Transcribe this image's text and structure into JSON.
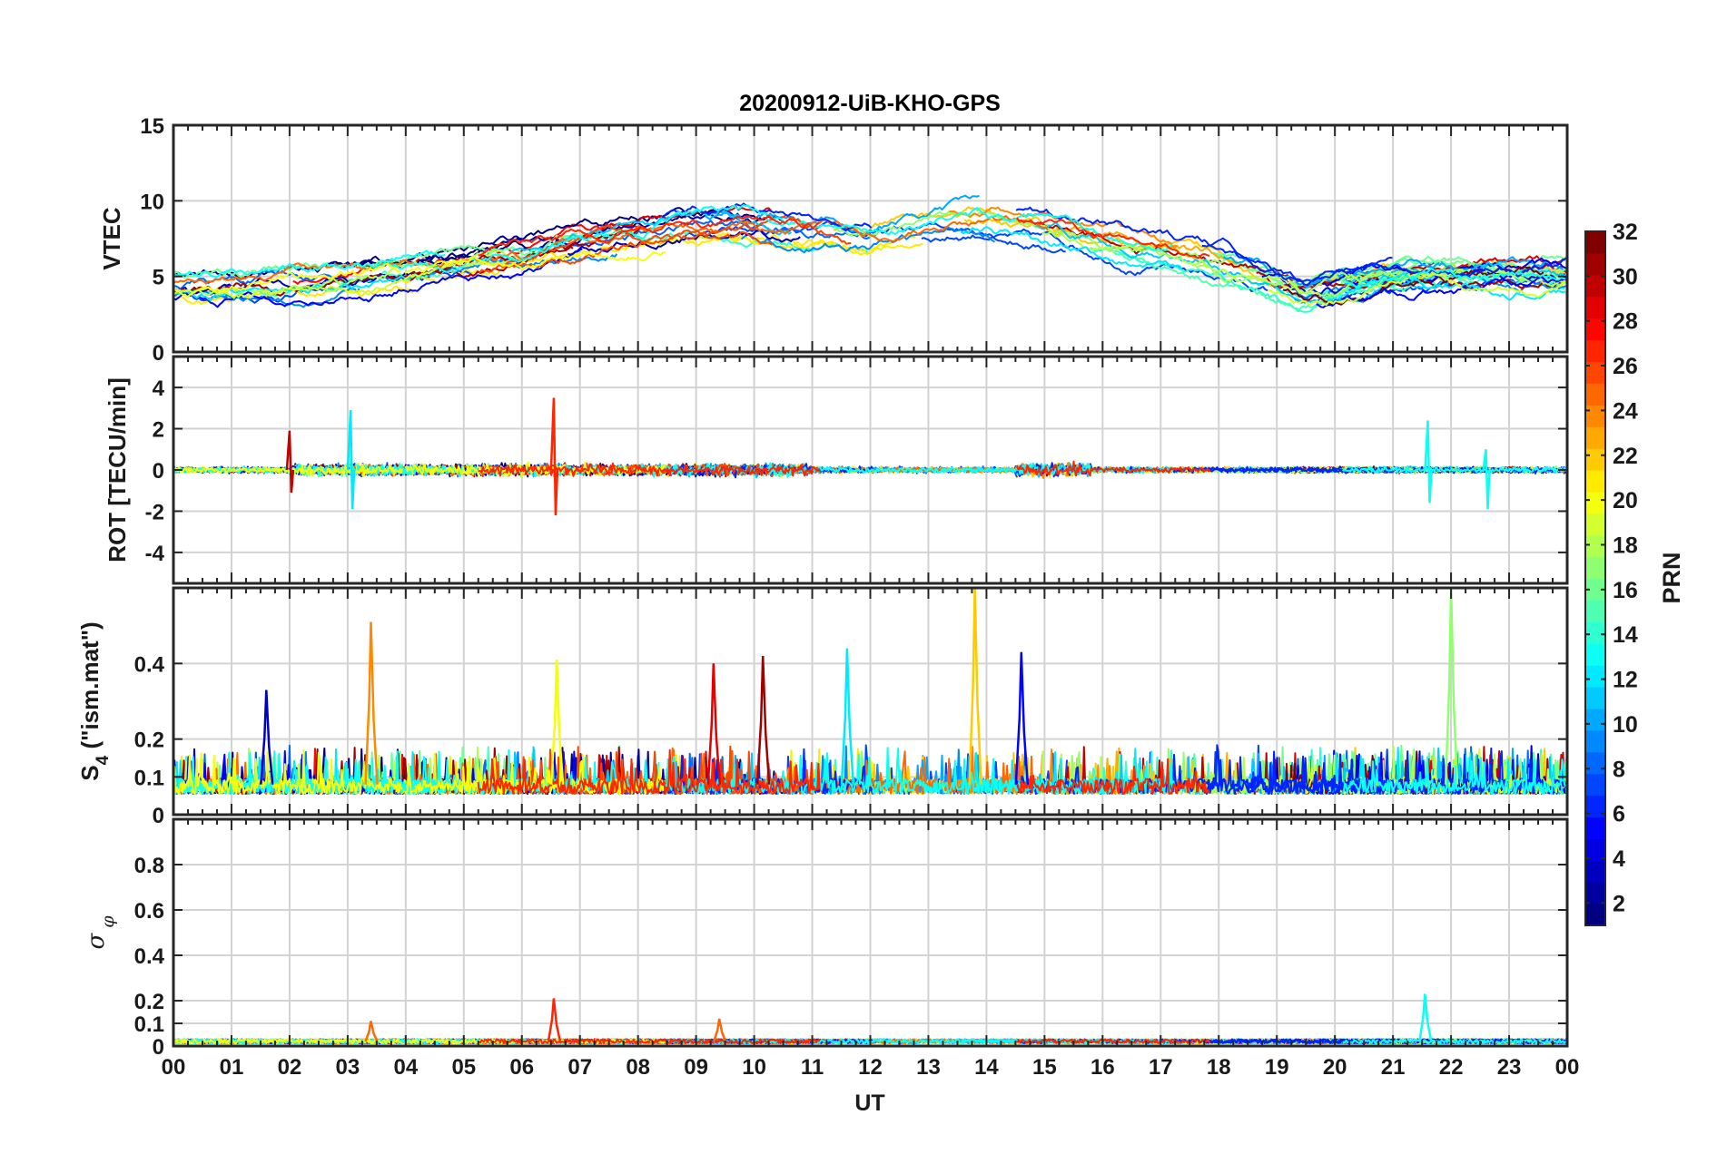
{
  "chart_data": {
    "type": "line",
    "title": "20200912-UiB-KHO-GPS",
    "xlabel": "UT",
    "xlim": [
      0,
      24
    ],
    "x_tick_labels": [
      "00",
      "01",
      "02",
      "03",
      "04",
      "05",
      "06",
      "07",
      "08",
      "09",
      "10",
      "11",
      "12",
      "13",
      "14",
      "15",
      "16",
      "17",
      "18",
      "19",
      "20",
      "21",
      "22",
      "23",
      "00"
    ],
    "series_id_note": "color = satellite PRN (1-32)",
    "colorbar": {
      "label": "PRN",
      "range": [
        1,
        32
      ],
      "tick_labels": [
        "2",
        "4",
        "6",
        "8",
        "10",
        "12",
        "14",
        "16",
        "18",
        "20",
        "22",
        "24",
        "26",
        "28",
        "30",
        "32"
      ],
      "colormap": "jet"
    },
    "panels": [
      {
        "id": "vtec",
        "ylabel": "VTEC",
        "ylim": [
          0,
          15
        ],
        "y_ticks": [
          0,
          5,
          10,
          15
        ],
        "y_tick_labels": [
          "0",
          "5",
          "10",
          "15"
        ],
        "typical_profile": {
          "hours": [
            0,
            3,
            6,
            9,
            12,
            14,
            15,
            17,
            18,
            19.5,
            21,
            24
          ],
          "values": [
            4.5,
            5,
            6.5,
            8.5,
            7.8,
            8.8,
            8,
            6.5,
            5.8,
            4,
            5,
            5.2
          ]
        }
      },
      {
        "id": "rot",
        "ylabel": "ROT [TECU/min]",
        "ylim": [
          -5.5,
          5.5
        ],
        "y_ticks": [
          -4,
          -2,
          0,
          2,
          4
        ],
        "y_tick_labels": [
          "-4",
          "-2",
          "0",
          "2",
          "4"
        ],
        "peaks": [
          {
            "ut": 6.55,
            "prn": 27,
            "max": 3.5,
            "min": -2.2
          },
          {
            "ut": 3.05,
            "prn": 12,
            "max": 2.9,
            "min": -1.9
          },
          {
            "ut": 2.0,
            "prn": 30,
            "max": 1.9,
            "min": -1.1
          },
          {
            "ut": 21.6,
            "prn": 13,
            "max": 2.4,
            "min": -1.6
          },
          {
            "ut": 22.6,
            "prn": 13,
            "max": 1.0,
            "min": -1.9
          }
        ]
      },
      {
        "id": "s4",
        "ylabel": "S4 (\"ism.mat\")",
        "ylabel_main": "S",
        "ylabel_sub": "4",
        "ylabel_rest": " (\"ism.mat\")",
        "ylim": [
          0,
          0.6
        ],
        "y_ticks": [
          0,
          0.1,
          0.2,
          0.4
        ],
        "y_tick_labels": [
          "0",
          "0.1",
          "0.2",
          "0.4"
        ],
        "peaks": [
          {
            "ut": 13.8,
            "prn": 22,
            "value": 0.6
          },
          {
            "ut": 22.0,
            "prn": 17,
            "value": 0.6
          },
          {
            "ut": 3.4,
            "prn": 24,
            "value": 0.51
          },
          {
            "ut": 10.15,
            "prn": 31,
            "value": 0.42
          },
          {
            "ut": 14.6,
            "prn": 5,
            "value": 0.43
          },
          {
            "ut": 6.6,
            "prn": 20,
            "value": 0.41
          },
          {
            "ut": 11.6,
            "prn": 12,
            "value": 0.44
          },
          {
            "ut": 9.3,
            "prn": 29,
            "value": 0.4
          },
          {
            "ut": 1.6,
            "prn": 3,
            "value": 0.33
          }
        ]
      },
      {
        "id": "sigma_phi",
        "ylabel": "σ φ",
        "ylabel_main": "σ",
        "ylabel_sub": "φ",
        "ylim": [
          0,
          1.0
        ],
        "y_ticks": [
          0,
          0.1,
          0.2,
          0.4,
          0.6,
          0.8
        ],
        "y_tick_labels": [
          "0",
          "0.1",
          "0.2",
          "0.4",
          "0.6",
          "0.8"
        ],
        "peaks": [
          {
            "ut": 6.55,
            "prn": 27,
            "value": 0.21
          },
          {
            "ut": 21.55,
            "prn": 13,
            "value": 0.23
          },
          {
            "ut": 9.4,
            "prn": 25,
            "value": 0.12
          },
          {
            "ut": 3.4,
            "prn": 25,
            "value": 0.11
          }
        ]
      }
    ]
  }
}
